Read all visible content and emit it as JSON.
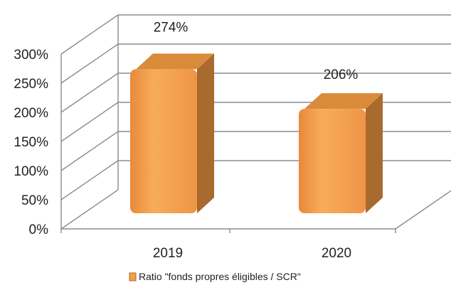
{
  "chart_data": {
    "type": "bar",
    "categories": [
      "2019",
      "2020"
    ],
    "series": [
      {
        "name": "Ratio \"fonds propres éligibles / SCR\"",
        "values": [
          274,
          206
        ],
        "data_labels": [
          "274%",
          "206%"
        ]
      }
    ],
    "ylim": [
      0,
      300
    ],
    "yticks": [
      "0%",
      "50%",
      "100%",
      "150%",
      "200%",
      "250%",
      "300%"
    ],
    "grid": true,
    "legend_position": "bottom",
    "style": "3d-column",
    "colors": {
      "bar_front": "#F4A04A",
      "bar_side": "#A86A2E",
      "bar_top": "#D98A3A",
      "grid": "#8c8c8c"
    }
  }
}
